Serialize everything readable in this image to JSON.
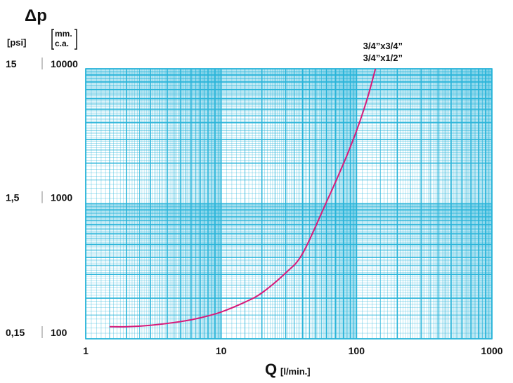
{
  "chart_data": {
    "type": "line",
    "title": "",
    "ylabel": "Δp",
    "xlabel": "Q",
    "xlabel_unit": "[l/min.]",
    "xscale": "log",
    "yscale": "log",
    "xlim": [
      1,
      1000
    ],
    "ylim": [
      100,
      10000
    ],
    "grid": true,
    "y_units": {
      "psi": "[psi]",
      "mmca_line1": "mm.",
      "mmca_line2": "c.a."
    },
    "x_ticks": [
      {
        "value": 1,
        "label": "1"
      },
      {
        "value": 10,
        "label": "10"
      },
      {
        "value": 100,
        "label": "100"
      },
      {
        "value": 1000,
        "label": "1000"
      }
    ],
    "y_ticks": [
      {
        "value": 10000,
        "psi": "15",
        "mmca": "10000"
      },
      {
        "value": 1000,
        "psi": "1,5",
        "mmca": "1000"
      },
      {
        "value": 100,
        "psi": "0,15",
        "mmca": "100"
      }
    ],
    "series": [
      {
        "name": "3/4”x3/4”",
        "name2": "3/4”x1/2”",
        "points": [
          [
            1.5,
            123
          ],
          [
            2,
            123
          ],
          [
            3,
            126
          ],
          [
            5,
            134
          ],
          [
            7,
            143
          ],
          [
            10,
            158
          ],
          [
            15,
            187
          ],
          [
            20,
            219
          ],
          [
            30,
            308
          ],
          [
            40,
            429
          ],
          [
            60,
            1030
          ],
          [
            80,
            1980
          ],
          [
            100,
            3470
          ],
          [
            120,
            6000
          ],
          [
            138,
            10000
          ]
        ]
      }
    ]
  },
  "colors": {
    "grid": "#29b4d9",
    "curve": "#d81b7a",
    "background": "#ffffff",
    "text": "#111111"
  }
}
